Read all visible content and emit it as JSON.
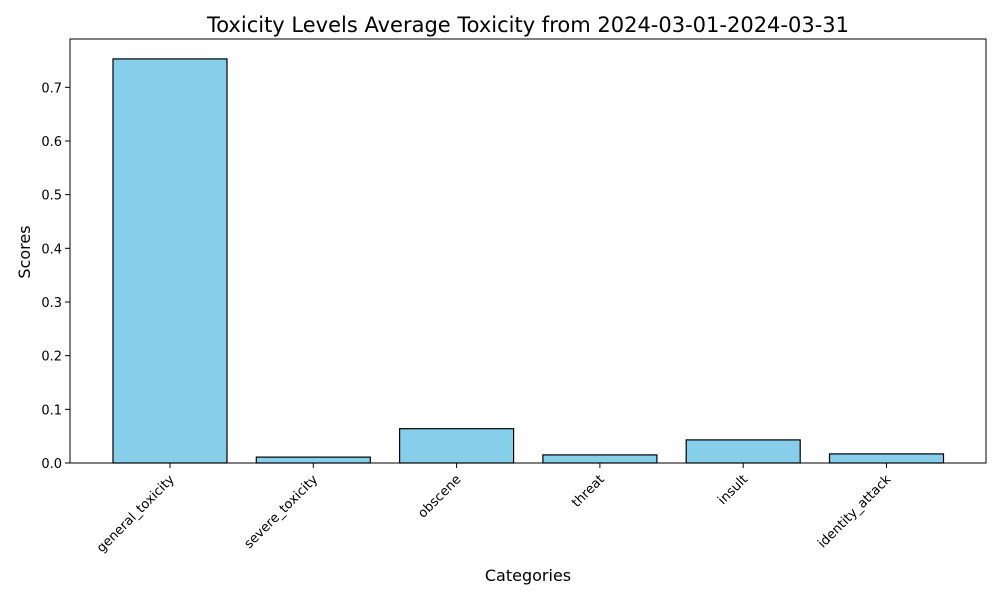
{
  "chart_data": {
    "type": "bar",
    "title": "Toxicity Levels Average Toxicity from 2024-03-01-2024-03-31",
    "xlabel": "Categories",
    "ylabel": "Scores",
    "categories": [
      "general_toxicity",
      "severe_toxicity",
      "obscene",
      "threat",
      "insult",
      "identity_attack"
    ],
    "values": [
      0.753,
      0.011,
      0.064,
      0.015,
      0.043,
      0.017
    ],
    "ylim": [
      0,
      0.79
    ],
    "yticks": [
      0.0,
      0.1,
      0.2,
      0.3,
      0.4,
      0.5,
      0.6,
      0.7
    ],
    "ytick_labels": [
      "0.0",
      "0.1",
      "0.2",
      "0.3",
      "0.4",
      "0.5",
      "0.6",
      "0.7"
    ],
    "bar_color": "#87CEEB",
    "bar_edge_color": "#000000",
    "grid": false,
    "legend": false,
    "xtick_rotation_deg": 45
  }
}
